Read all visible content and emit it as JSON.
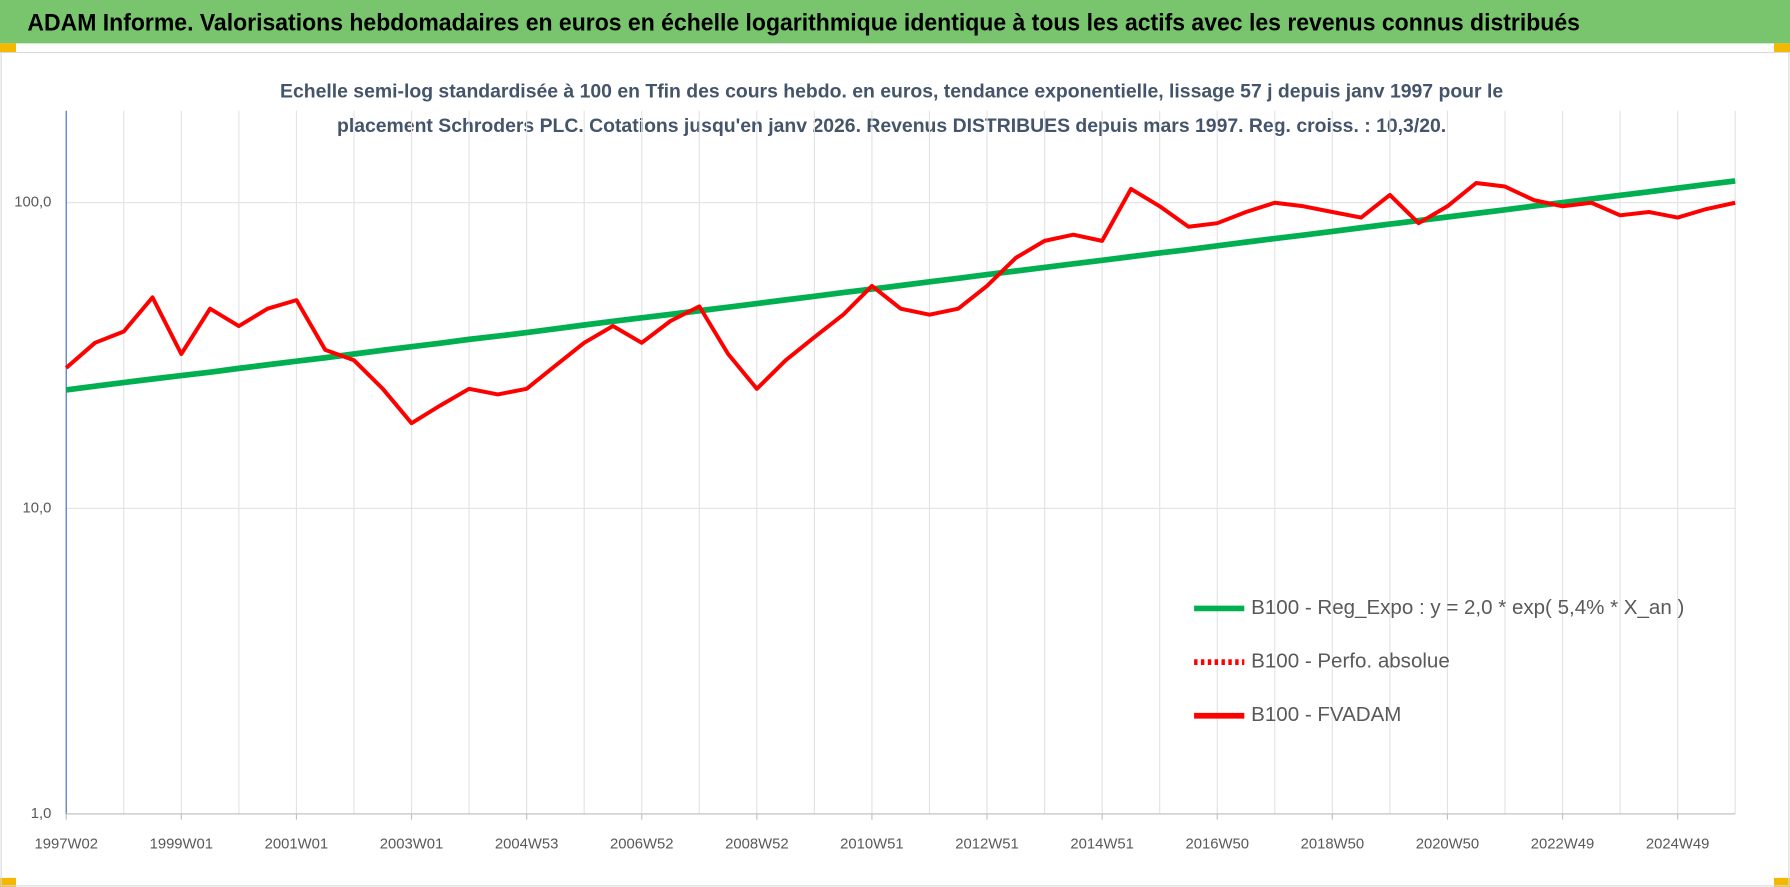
{
  "header": {
    "title": "ADAM Informe. Valorisations hebdomadaires en euros en échelle logarithmique identique à tous les actifs avec les revenus connus distribués"
  },
  "chart_data": {
    "type": "line",
    "title": [
      "Echelle semi-log standardisée à 100 en Tfin des cours hebdo. en euros, tendance exponentielle, lissage 57 j depuis janv 1997 pour le",
      "placement Schroders PLC. Cotations jusqu'en janv 2026.  Revenus DISTRIBUES depuis mars 1997. Reg. croiss. : 10,3/20."
    ],
    "categories": [
      "1997W02",
      null,
      null,
      null,
      "1999W01",
      null,
      null,
      null,
      "2001W01",
      null,
      null,
      null,
      "2003W01",
      null,
      null,
      null,
      "2004W53",
      null,
      null,
      null,
      "2006W52",
      null,
      null,
      null,
      "2008W52",
      null,
      null,
      null,
      "2010W51",
      null,
      null,
      null,
      "2012W51",
      null,
      null,
      null,
      "2014W51",
      null,
      null,
      null,
      "2016W50",
      null,
      null,
      null,
      "2018W50",
      null,
      null,
      null,
      "2020W50",
      null,
      null,
      null,
      "2022W49",
      null,
      null,
      null,
      "2024W49",
      null,
      null
    ],
    "log_scale": true,
    "ylim": [
      1,
      200
    ],
    "yticks": [
      {
        "value": 1,
        "label": "1,0"
      },
      {
        "value": 10,
        "label": "10,0"
      },
      {
        "value": 100,
        "label": "100,0"
      }
    ],
    "grid": true,
    "legend": "lower right",
    "series": [
      {
        "name": "B100 - Reg_Expo : y = 2,0 * exp( 5,4% *  X_an )",
        "color": "#00b050",
        "dash": "solid",
        "values": [
          24.4,
          25.1,
          25.8,
          26.5,
          27.2,
          27.9,
          28.7,
          29.5,
          30.3,
          31.1,
          32.0,
          32.9,
          33.8,
          34.7,
          35.7,
          36.6,
          37.6,
          38.7,
          39.8,
          40.9,
          42.0,
          43.1,
          44.3,
          45.5,
          46.8,
          48.1,
          49.4,
          50.8,
          52.2,
          53.6,
          55.1,
          56.6,
          58.2,
          59.8,
          61.4,
          63.1,
          64.8,
          66.6,
          68.5,
          70.3,
          72.3,
          74.3,
          76.3,
          78.4,
          80.6,
          82.8,
          85.1,
          87.4,
          89.8,
          92.3,
          94.8,
          97.5,
          100.1,
          102.9,
          105.7,
          108.6,
          111.6,
          114.7,
          117.8
        ]
      },
      {
        "name": "B100 - Perfo. absolue",
        "color": "#ff0000",
        "dash": "dotted",
        "values": [
          null,
          null,
          null,
          null,
          null,
          null,
          null,
          null,
          null,
          null,
          null,
          null,
          null,
          null,
          null,
          null,
          null,
          null,
          null,
          null,
          null,
          null,
          null,
          null,
          null,
          null,
          null,
          null,
          null,
          null,
          null,
          null,
          null,
          null,
          null,
          null,
          null,
          null,
          null,
          null,
          null,
          null,
          null,
          null,
          null,
          null,
          null,
          null,
          null,
          null,
          null,
          null,
          null,
          null,
          null,
          null,
          null,
          null,
          null
        ]
      },
      {
        "name": "B100 - FVADAM",
        "color": "#ff0000",
        "dash": "solid",
        "values": [
          28.8,
          34.8,
          37.9,
          49,
          32,
          45,
          39.5,
          45,
          48,
          33,
          30.5,
          24.6,
          19,
          21.7,
          24.6,
          23.6,
          24.6,
          29.3,
          34.8,
          39.5,
          34.8,
          41,
          45.8,
          32,
          24.6,
          30.5,
          36.3,
          43,
          53.4,
          45,
          43,
          45,
          53.4,
          66,
          75,
          78.6,
          75,
          111,
          97.4,
          83.5,
          85.7,
          93.3,
          100,
          97.4,
          93.3,
          89.4,
          106,
          85.7,
          97.4,
          116,
          113,
          102,
          97.4,
          100,
          91,
          93.3,
          89.4,
          95.4,
          100
        ]
      }
    ]
  }
}
